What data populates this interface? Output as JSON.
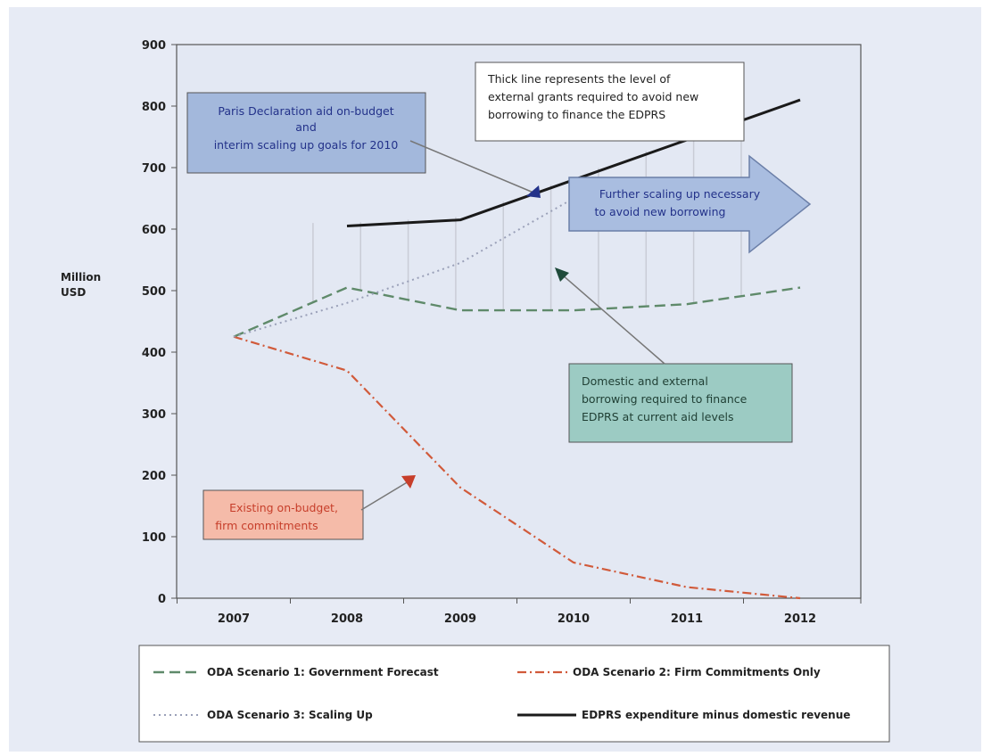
{
  "chart_data": {
    "type": "line",
    "y_axis_label_lines": [
      "Million",
      "USD"
    ],
    "ylim": [
      0,
      900
    ],
    "yticks": [
      0,
      100,
      200,
      300,
      400,
      500,
      600,
      700,
      800,
      900
    ],
    "x": [
      "2007",
      "2008",
      "2009",
      "2010",
      "2011",
      "2012"
    ],
    "grid": false,
    "legend_position": "bottom",
    "series": [
      {
        "name": "ODA Scenario 1: Government Forecast",
        "color": "#5f8a6a",
        "style": "dashed",
        "values": [
          425,
          505,
          468,
          468,
          478,
          505
        ]
      },
      {
        "name": "ODA Scenario 2: Firm Commitments Only",
        "color": "#d15a3a",
        "style": "dash-dot",
        "values": [
          425,
          370,
          180,
          58,
          18,
          0
        ]
      },
      {
        "name": "ODA Scenario 3: Scaling Up",
        "color": "#9aa0b8",
        "style": "dotted",
        "values": [
          425,
          480,
          545,
          650,
          null,
          null
        ]
      },
      {
        "name": "EDPRS expenditure minus domestic revenue",
        "color": "#1a1a1a",
        "style": "solid",
        "values": [
          null,
          605,
          615,
          680,
          745,
          810
        ]
      }
    ],
    "annotations": [
      {
        "lines": [
          "Thick line represents the level of",
          "external grants required to avoid new",
          "borrowing to finance the EDPRS"
        ],
        "color": "#222222",
        "box": "#ffffff"
      },
      {
        "lines": [
          "Paris Declaration aid on-budget",
          "and",
          "interim scaling up goals for 2010"
        ],
        "color": "#23328a",
        "box": "#9db3d9"
      },
      {
        "lines": [
          "Further scaling up necessary",
          "to avoid new borrowing"
        ],
        "color": "#23328a",
        "box": "#a9bde0"
      },
      {
        "lines": [
          "Domestic and external",
          "borrowing required to finance",
          "EDPRS at current aid levels"
        ],
        "color": "#1f3f34",
        "box": "#96c8c0"
      },
      {
        "lines": [
          "Existing on-budget,",
          "firm commitments"
        ],
        "color": "#c73e2a",
        "box": "#f3b9a8"
      }
    ]
  }
}
